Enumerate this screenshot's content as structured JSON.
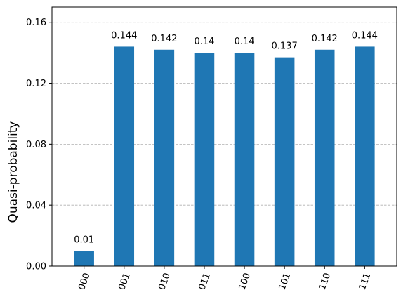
{
  "chart_data": {
    "type": "bar",
    "title": "",
    "xlabel": "",
    "ylabel": "Quasi-probability",
    "categories": [
      "000",
      "001",
      "010",
      "011",
      "100",
      "101",
      "110",
      "111"
    ],
    "values": [
      0.01,
      0.144,
      0.142,
      0.14,
      0.14,
      0.137,
      0.142,
      0.144
    ],
    "value_labels": [
      "0.01",
      "0.144",
      "0.142",
      "0.14",
      "0.14",
      "0.137",
      "0.142",
      "0.144"
    ],
    "ylim": [
      0,
      0.17
    ],
    "yticks": [
      0.0,
      0.04,
      0.08,
      0.12,
      0.16
    ],
    "ytick_labels": [
      "0.00",
      "0.04",
      "0.08",
      "0.12",
      "0.16"
    ],
    "grid": "horizontal dashed",
    "bar_color": "#1f77b4",
    "grid_color": "#b0b0b0"
  }
}
